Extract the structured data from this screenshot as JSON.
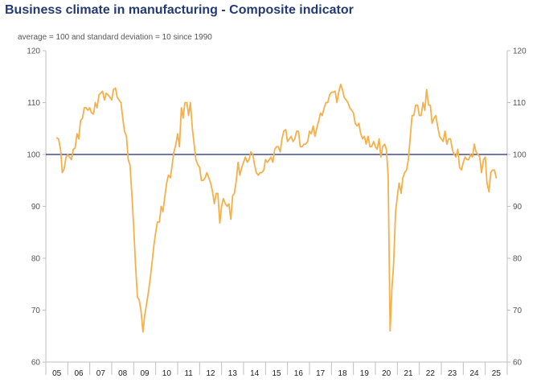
{
  "chart_data": {
    "type": "line",
    "title": "Business climate in manufacturing - Composite indicator",
    "subtitle": "average = 100 and standard deviation = 10 since 1990",
    "ylim": [
      60,
      120
    ],
    "yticks": [
      60,
      70,
      80,
      90,
      100,
      110,
      120
    ],
    "xlim": [
      2004.5,
      2025.5
    ],
    "categories": [
      "05",
      "06",
      "07",
      "08",
      "09",
      "10",
      "11",
      "12",
      "13",
      "14",
      "15",
      "16",
      "17",
      "18",
      "19",
      "20",
      "21",
      "22",
      "23",
      "24",
      "25"
    ],
    "reference_line": {
      "y": 100,
      "color": "#1f2a7a"
    },
    "series": [
      {
        "color": "#f5b04a",
        "points": [
          [
            2005.0,
            103.2
          ],
          [
            2005.08,
            103.0
          ],
          [
            2005.17,
            101.0
          ],
          [
            2005.25,
            96.5
          ],
          [
            2005.33,
            97.2
          ],
          [
            2005.42,
            99.5
          ],
          [
            2005.5,
            100.0
          ],
          [
            2005.58,
            99.5
          ],
          [
            2005.67,
            99.0
          ],
          [
            2005.75,
            101.0
          ],
          [
            2005.83,
            101.2
          ],
          [
            2005.92,
            104.0
          ],
          [
            2006.0,
            103.0
          ],
          [
            2006.08,
            106.5
          ],
          [
            2006.17,
            107.0
          ],
          [
            2006.25,
            109.0
          ],
          [
            2006.33,
            109.0
          ],
          [
            2006.42,
            108.5
          ],
          [
            2006.5,
            109.0
          ],
          [
            2006.58,
            108.0
          ],
          [
            2006.67,
            107.8
          ],
          [
            2006.75,
            110.0
          ],
          [
            2006.83,
            109.0
          ],
          [
            2006.92,
            111.5
          ],
          [
            2007.0,
            111.8
          ],
          [
            2007.08,
            112.2
          ],
          [
            2007.17,
            110.5
          ],
          [
            2007.25,
            111.8
          ],
          [
            2007.33,
            111.5
          ],
          [
            2007.42,
            111.0
          ],
          [
            2007.5,
            110.5
          ],
          [
            2007.58,
            112.5
          ],
          [
            2007.67,
            112.8
          ],
          [
            2007.75,
            111.0
          ],
          [
            2007.83,
            110.5
          ],
          [
            2007.92,
            110.0
          ],
          [
            2008.0,
            107.0
          ],
          [
            2008.08,
            104.5
          ],
          [
            2008.17,
            103.5
          ],
          [
            2008.25,
            99.0
          ],
          [
            2008.33,
            98.0
          ],
          [
            2008.42,
            92.0
          ],
          [
            2008.5,
            86.0
          ],
          [
            2008.58,
            79.0
          ],
          [
            2008.67,
            72.5
          ],
          [
            2008.75,
            72.0
          ],
          [
            2008.83,
            70.0
          ],
          [
            2008.92,
            65.8
          ],
          [
            2009.0,
            69.0
          ],
          [
            2009.08,
            71.0
          ],
          [
            2009.17,
            73.5
          ],
          [
            2009.25,
            76.0
          ],
          [
            2009.33,
            79.0
          ],
          [
            2009.42,
            82.5
          ],
          [
            2009.5,
            85.0
          ],
          [
            2009.58,
            87.0
          ],
          [
            2009.67,
            87.0
          ],
          [
            2009.75,
            90.0
          ],
          [
            2009.83,
            89.0
          ],
          [
            2009.92,
            92.0
          ],
          [
            2010.0,
            94.5
          ],
          [
            2010.08,
            96.0
          ],
          [
            2010.17,
            95.5
          ],
          [
            2010.25,
            98.0
          ],
          [
            2010.33,
            100.5
          ],
          [
            2010.42,
            102.0
          ],
          [
            2010.5,
            104.0
          ],
          [
            2010.58,
            101.5
          ],
          [
            2010.67,
            109.0
          ],
          [
            2010.75,
            107.0
          ],
          [
            2010.83,
            110.0
          ],
          [
            2010.92,
            110.0
          ],
          [
            2011.0,
            107.5
          ],
          [
            2011.08,
            110.0
          ],
          [
            2011.17,
            105.0
          ],
          [
            2011.25,
            102.0
          ],
          [
            2011.33,
            99.0
          ],
          [
            2011.42,
            98.0
          ],
          [
            2011.5,
            97.5
          ],
          [
            2011.58,
            95.0
          ],
          [
            2011.67,
            95.0
          ],
          [
            2011.75,
            95.5
          ],
          [
            2011.83,
            96.5
          ],
          [
            2011.92,
            95.5
          ],
          [
            2012.0,
            94.5
          ],
          [
            2012.08,
            93.0
          ],
          [
            2012.17,
            90.5
          ],
          [
            2012.25,
            92.5
          ],
          [
            2012.33,
            92.5
          ],
          [
            2012.42,
            86.8
          ],
          [
            2012.5,
            90.0
          ],
          [
            2012.58,
            91.5
          ],
          [
            2012.67,
            90.5
          ],
          [
            2012.75,
            90.0
          ],
          [
            2012.83,
            90.5
          ],
          [
            2012.92,
            87.5
          ],
          [
            2013.0,
            92.0
          ],
          [
            2013.08,
            92.5
          ],
          [
            2013.17,
            95.0
          ],
          [
            2013.25,
            98.5
          ],
          [
            2013.33,
            96.0
          ],
          [
            2013.42,
            97.5
          ],
          [
            2013.5,
            98.5
          ],
          [
            2013.58,
            99.5
          ],
          [
            2013.67,
            98.5
          ],
          [
            2013.75,
            99.0
          ],
          [
            2013.83,
            100.5
          ],
          [
            2013.92,
            100.0
          ],
          [
            2014.0,
            98.0
          ],
          [
            2014.08,
            96.5
          ],
          [
            2014.17,
            96.0
          ],
          [
            2014.25,
            96.5
          ],
          [
            2014.33,
            96.5
          ],
          [
            2014.42,
            97.0
          ],
          [
            2014.5,
            99.0
          ],
          [
            2014.58,
            98.5
          ],
          [
            2014.67,
            99.0
          ],
          [
            2014.75,
            99.5
          ],
          [
            2014.83,
            98.5
          ],
          [
            2014.92,
            101.0
          ],
          [
            2015.0,
            101.5
          ],
          [
            2015.08,
            101.5
          ],
          [
            2015.17,
            100.5
          ],
          [
            2015.25,
            103.0
          ],
          [
            2015.33,
            104.5
          ],
          [
            2015.42,
            104.8
          ],
          [
            2015.5,
            102.5
          ],
          [
            2015.58,
            103.0
          ],
          [
            2015.67,
            103.5
          ],
          [
            2015.75,
            102.5
          ],
          [
            2015.83,
            103.0
          ],
          [
            2015.92,
            104.5
          ],
          [
            2016.0,
            104.5
          ],
          [
            2016.08,
            101.5
          ],
          [
            2016.17,
            101.5
          ],
          [
            2016.25,
            102.0
          ],
          [
            2016.33,
            102.0
          ],
          [
            2016.42,
            102.5
          ],
          [
            2016.5,
            104.5
          ],
          [
            2016.58,
            104.0
          ],
          [
            2016.67,
            105.5
          ],
          [
            2016.75,
            103.5
          ],
          [
            2016.83,
            105.0
          ],
          [
            2016.92,
            106.5
          ],
          [
            2017.0,
            108.0
          ],
          [
            2017.08,
            107.5
          ],
          [
            2017.17,
            109.0
          ],
          [
            2017.25,
            110.0
          ],
          [
            2017.33,
            110.0
          ],
          [
            2017.42,
            111.5
          ],
          [
            2017.5,
            112.0
          ],
          [
            2017.58,
            112.0
          ],
          [
            2017.67,
            112.2
          ],
          [
            2017.75,
            110.0
          ],
          [
            2017.83,
            112.0
          ],
          [
            2017.92,
            113.5
          ],
          [
            2018.0,
            112.5
          ],
          [
            2018.08,
            111.0
          ],
          [
            2018.17,
            110.5
          ],
          [
            2018.25,
            110.0
          ],
          [
            2018.33,
            109.0
          ],
          [
            2018.42,
            108.5
          ],
          [
            2018.5,
            108.0
          ],
          [
            2018.58,
            106.0
          ],
          [
            2018.67,
            105.5
          ],
          [
            2018.75,
            106.0
          ],
          [
            2018.83,
            104.0
          ],
          [
            2018.92,
            103.0
          ],
          [
            2019.0,
            103.5
          ],
          [
            2019.08,
            102.0
          ],
          [
            2019.17,
            103.5
          ],
          [
            2019.25,
            101.5
          ],
          [
            2019.33,
            101.5
          ],
          [
            2019.42,
            102.5
          ],
          [
            2019.5,
            101.5
          ],
          [
            2019.58,
            101.0
          ],
          [
            2019.67,
            103.0
          ],
          [
            2019.75,
            99.5
          ],
          [
            2019.83,
            101.5
          ],
          [
            2019.92,
            102.0
          ],
          [
            2020.0,
            101.0
          ],
          [
            2020.08,
            96.0
          ],
          [
            2020.17,
            66.0
          ],
          [
            2020.25,
            74.0
          ],
          [
            2020.33,
            79.0
          ],
          [
            2020.42,
            89.0
          ],
          [
            2020.5,
            92.0
          ],
          [
            2020.58,
            94.5
          ],
          [
            2020.67,
            92.5
          ],
          [
            2020.75,
            95.5
          ],
          [
            2020.83,
            96.5
          ],
          [
            2020.92,
            97.0
          ],
          [
            2021.0,
            99.0
          ],
          [
            2021.08,
            103.0
          ],
          [
            2021.17,
            107.5
          ],
          [
            2021.25,
            107.5
          ],
          [
            2021.33,
            109.5
          ],
          [
            2021.42,
            109.5
          ],
          [
            2021.5,
            107.5
          ],
          [
            2021.58,
            107.5
          ],
          [
            2021.67,
            110.0
          ],
          [
            2021.75,
            108.5
          ],
          [
            2021.83,
            112.5
          ],
          [
            2021.92,
            109.5
          ],
          [
            2022.0,
            109.5
          ],
          [
            2022.08,
            106.0
          ],
          [
            2022.17,
            107.0
          ],
          [
            2022.25,
            107.5
          ],
          [
            2022.33,
            105.5
          ],
          [
            2022.42,
            103.5
          ],
          [
            2022.5,
            103.0
          ],
          [
            2022.58,
            102.5
          ],
          [
            2022.67,
            104.5
          ],
          [
            2022.75,
            102.0
          ],
          [
            2022.83,
            103.0
          ],
          [
            2022.92,
            103.0
          ],
          [
            2023.0,
            101.0
          ],
          [
            2023.08,
            100.0
          ],
          [
            2023.17,
            99.5
          ],
          [
            2023.25,
            101.0
          ],
          [
            2023.33,
            97.5
          ],
          [
            2023.42,
            97.0
          ],
          [
            2023.5,
            98.5
          ],
          [
            2023.58,
            99.5
          ],
          [
            2023.67,
            99.0
          ],
          [
            2023.75,
            99.0
          ],
          [
            2023.83,
            100.0
          ],
          [
            2023.92,
            99.5
          ],
          [
            2024.0,
            102.0
          ],
          [
            2024.08,
            100.5
          ],
          [
            2024.17,
            100.0
          ],
          [
            2024.25,
            99.5
          ],
          [
            2024.33,
            96.5
          ],
          [
            2024.42,
            99.0
          ],
          [
            2024.5,
            99.5
          ],
          [
            2024.58,
            94.5
          ],
          [
            2024.67,
            92.8
          ],
          [
            2024.75,
            96.5
          ],
          [
            2024.83,
            97.0
          ],
          [
            2024.92,
            97.0
          ],
          [
            2025.0,
            95.5
          ]
        ]
      }
    ]
  }
}
